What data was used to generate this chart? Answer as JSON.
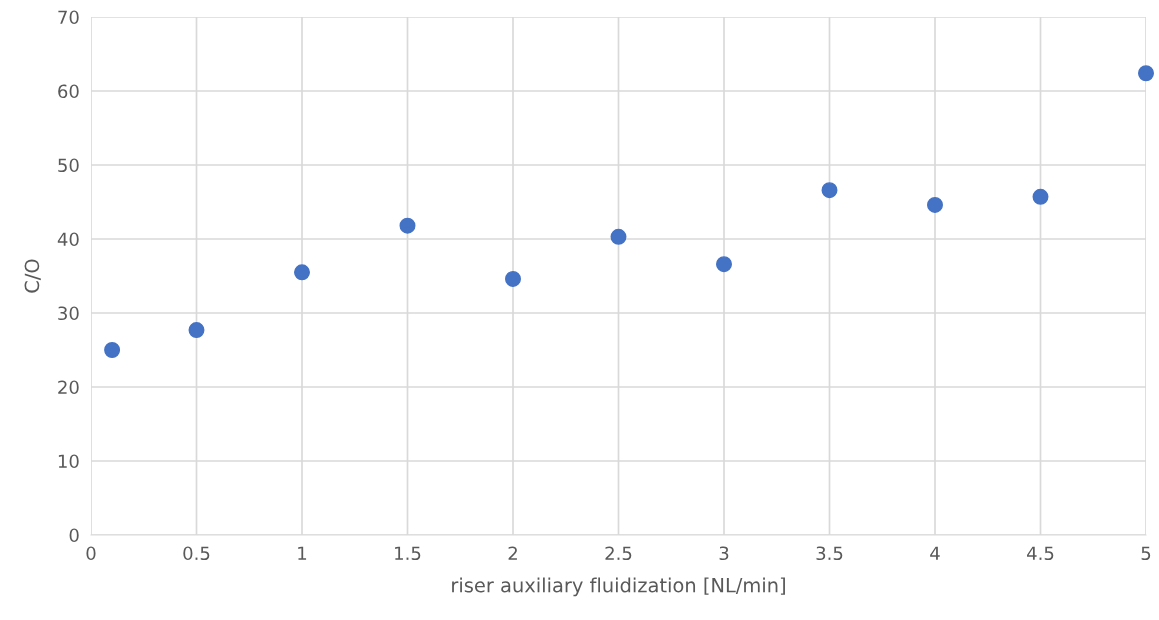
{
  "chart_data": {
    "type": "scatter",
    "xlabel": "riser auxiliary fluidization [NL/min]",
    "ylabel": "C/O",
    "x": [
      0.1,
      0.5,
      1,
      1.5,
      2,
      2.5,
      3,
      3.5,
      4,
      4.5,
      5
    ],
    "series": [
      {
        "color": "#4472c4",
        "values": [
          25.0,
          27.7,
          35.5,
          41.8,
          34.6,
          40.3,
          36.6,
          46.6,
          44.6,
          45.7,
          62.4
        ]
      }
    ],
    "xlim": [
      0,
      5
    ],
    "xticks": [
      0,
      {
        "value": 0.5,
        "label": "0.5"
      },
      1,
      {
        "value": 1.5,
        "label": "1.5"
      },
      2,
      {
        "value": 2.5,
        "label": "2.5"
      },
      3,
      {
        "value": 3.5,
        "label": "3.5"
      },
      4,
      {
        "value": 4.5,
        "label": "4.5"
      },
      5
    ],
    "ylim": [
      0,
      70
    ],
    "yticks": [
      0,
      10,
      20,
      30,
      40,
      50,
      60,
      70
    ],
    "grid": true,
    "marker": "circle"
  }
}
